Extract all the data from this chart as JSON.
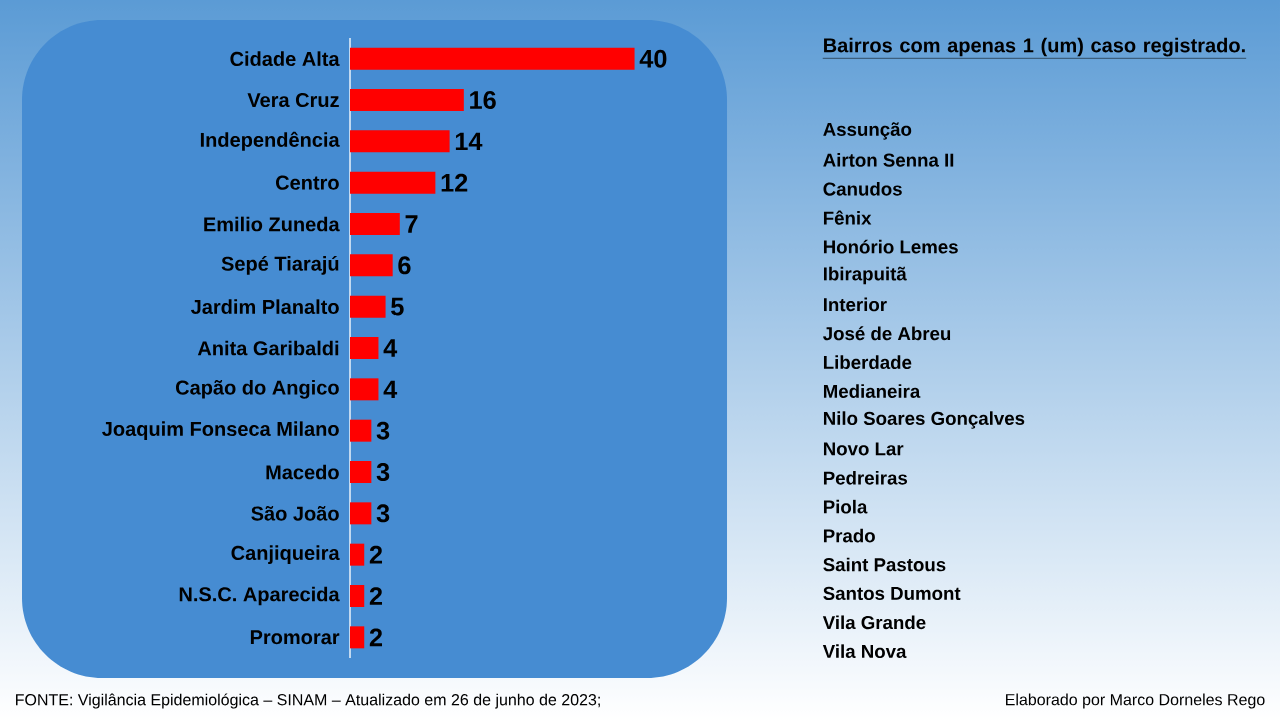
{
  "chart_data": {
    "type": "bar",
    "orientation": "horizontal",
    "color": "#ff0000",
    "data_labels": true,
    "categories": [
      "Cidade Alta",
      "Vera Cruz",
      "Independência",
      "Centro",
      "Emilio Zuneda",
      "Sepé Tiarajú",
      "Jardim Planalto",
      "Anita Garibaldi",
      "Capão do Angico",
      "Joaquim Fonseca Milano",
      "Macedo",
      "São João",
      "Canjiqueira",
      "N.S.C. Aparecida",
      "Promorar"
    ],
    "values": [
      40,
      16,
      14,
      12,
      7,
      6,
      5,
      4,
      4,
      3,
      3,
      3,
      2,
      2,
      2
    ],
    "annotations": [
      "Bairros com apenas 1 (um) caso registrado.",
      "Assunção",
      "Airton Senna II",
      "Canudos",
      "Fênix",
      "Honório Lemes",
      "Ibirapuitã",
      "Interior",
      "José de Abreu",
      "Liberdade",
      "Medianeira",
      "Nilo Soares Gonçalves",
      "Novo Lar",
      "Pedreiras",
      "Piola",
      "Prado",
      "Saint Pastous",
      "Santos Dumont",
      "Vila Grande",
      "Vila Nova",
      "FONTE: Vigilância Epidemiológica – SINAM – Atualizado em 26 de junho de 2023;",
      "Elaborado por Marco Dorneles Rego"
    ]
  }
}
